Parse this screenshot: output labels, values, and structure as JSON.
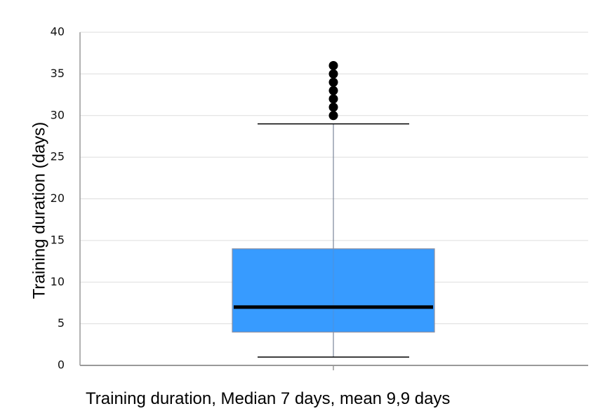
{
  "chart_data": {
    "type": "box",
    "ylabel": "Training duration (days)",
    "xlabel": "Training duration, Median 7 days, mean 9,9 days",
    "ylim": [
      0,
      40
    ],
    "yticks": [
      0,
      5,
      10,
      15,
      20,
      25,
      30,
      35,
      40
    ],
    "grid": true,
    "box": {
      "whisker_low": 1,
      "q1": 4,
      "median": 7,
      "q3": 14,
      "whisker_high": 29,
      "outliers": [
        30,
        31,
        32,
        33,
        34,
        35,
        36
      ]
    },
    "colors": {
      "box_fill": "#3399ff",
      "box_edge": "#8a8fa3",
      "median": "#000000",
      "whisker": "#000000",
      "stem": "#7a869a",
      "outlier": "#000000",
      "grid": "#dddddd",
      "axis": "#999999"
    }
  }
}
